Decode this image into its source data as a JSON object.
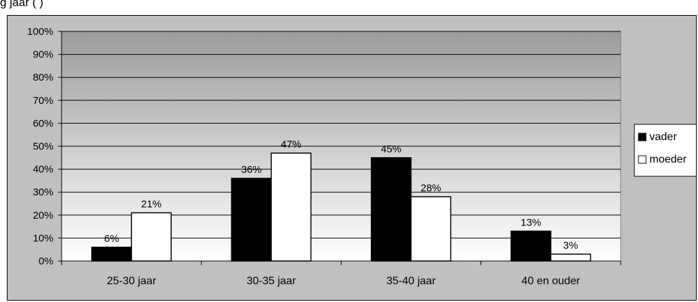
{
  "caption": "g                                       jaar  (  )",
  "chart_data": {
    "type": "bar",
    "title": "",
    "xlabel": "",
    "ylabel": "",
    "categories": [
      "25-30 jaar",
      "30-35 jaar",
      "35-40 jaar",
      "40 en ouder"
    ],
    "series": [
      {
        "name": "vader",
        "values": [
          6,
          36,
          45,
          13
        ],
        "labels": [
          "6%",
          "36%",
          "45%",
          "13%"
        ],
        "color": "#000000"
      },
      {
        "name": "moeder",
        "values": [
          21,
          47,
          28,
          3
        ],
        "labels": [
          "21%",
          "47%",
          "28%",
          "3%"
        ],
        "color": "#ffffff"
      }
    ],
    "ylim": [
      0,
      100
    ],
    "yticks": [
      "0%",
      "10%",
      "20%",
      "30%",
      "40%",
      "50%",
      "60%",
      "70%",
      "80%",
      "90%",
      "100%"
    ],
    "grid": true,
    "legend": "right",
    "colors": {
      "frame": "#c0c0c0",
      "plot_top": "#9c9c9c",
      "plot_bottom": "#ffffff",
      "gridline": "#000000"
    }
  }
}
